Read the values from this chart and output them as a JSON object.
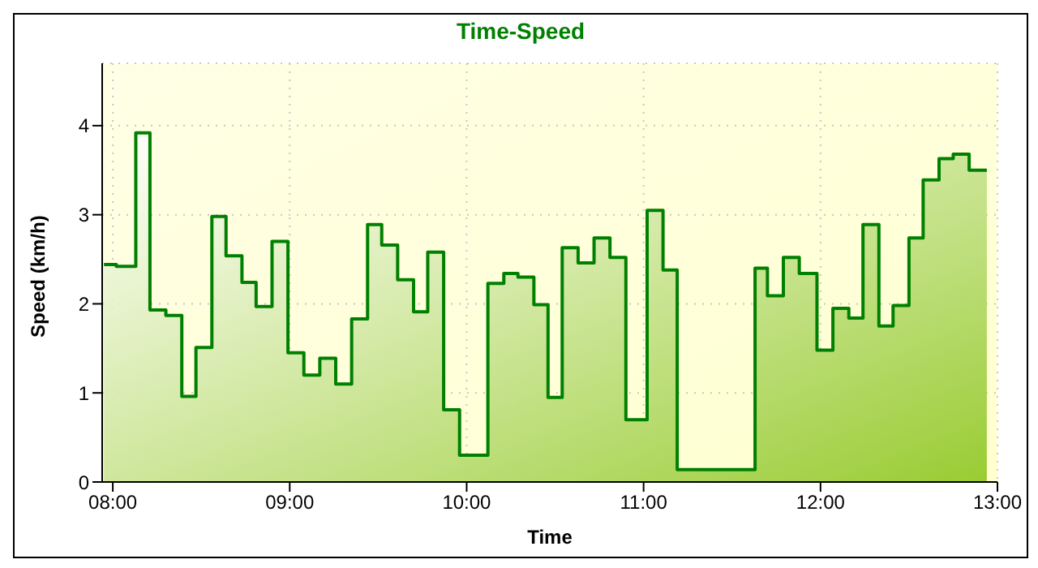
{
  "chart_data": {
    "type": "area",
    "title": "Time-Speed",
    "xlabel": "Time",
    "ylabel": "Speed (km/h)",
    "x": [
      7.95,
      8.02,
      8.02,
      8.13,
      8.13,
      8.21,
      8.21,
      8.3,
      8.3,
      8.39,
      8.39,
      8.47,
      8.47,
      8.56,
      8.56,
      8.64,
      8.64,
      8.73,
      8.73,
      8.81,
      8.81,
      8.9,
      8.9,
      8.99,
      8.99,
      9.08,
      9.08,
      9.17,
      9.17,
      9.26,
      9.26,
      9.35,
      9.35,
      9.44,
      9.44,
      9.52,
      9.52,
      9.61,
      9.61,
      9.7,
      9.7,
      9.78,
      9.78,
      9.87,
      9.87,
      9.96,
      9.96,
      10.12,
      10.12,
      10.21,
      10.21,
      10.29,
      10.29,
      10.38,
      10.38,
      10.46,
      10.46,
      10.54,
      10.54,
      10.63,
      10.63,
      10.72,
      10.72,
      10.81,
      10.81,
      10.9,
      10.9,
      11.02,
      11.02,
      11.11,
      11.11,
      11.19,
      11.19,
      11.63,
      11.63,
      11.7,
      11.7,
      11.79,
      11.79,
      11.88,
      11.88,
      11.98,
      11.98,
      12.07,
      12.07,
      12.16,
      12.16,
      12.24,
      12.24,
      12.33,
      12.33,
      12.41,
      12.41,
      12.5,
      12.5,
      12.58,
      12.58,
      12.67,
      12.67,
      12.75,
      12.75,
      12.84,
      12.84,
      12.94
    ],
    "series": [
      {
        "color": "#008000",
        "values": [
          2.44,
          2.44,
          2.42,
          2.42,
          3.92,
          3.92,
          1.93,
          1.93,
          1.87,
          1.87,
          0.96,
          0.96,
          1.51,
          1.51,
          2.98,
          2.98,
          2.54,
          2.54,
          2.24,
          2.24,
          1.97,
          1.97,
          2.7,
          2.7,
          1.45,
          1.45,
          1.2,
          1.2,
          1.39,
          1.39,
          1.1,
          1.1,
          1.83,
          1.83,
          2.89,
          2.89,
          2.66,
          2.66,
          2.27,
          2.27,
          1.91,
          1.91,
          2.58,
          2.58,
          0.81,
          0.81,
          0.3,
          0.3,
          2.23,
          2.23,
          2.34,
          2.34,
          2.3,
          2.3,
          1.99,
          1.99,
          0.95,
          0.95,
          2.63,
          2.63,
          2.46,
          2.46,
          2.74,
          2.74,
          2.52,
          2.52,
          0.7,
          0.7,
          3.05,
          3.05,
          2.38,
          2.38,
          0.14,
          0.14,
          2.4,
          2.4,
          2.09,
          2.09,
          2.52,
          2.52,
          2.34,
          2.34,
          1.48,
          1.48,
          1.95,
          1.95,
          1.84,
          1.84,
          2.89,
          2.89,
          1.75,
          1.75,
          1.98,
          1.98,
          2.74,
          2.74,
          3.39,
          3.39,
          3.63,
          3.63,
          3.68,
          3.68,
          3.5,
          3.5
        ]
      }
    ],
    "xlim": [
      7.94,
      13
    ],
    "xticks": [
      {
        "value": 8,
        "label": "08:00"
      },
      {
        "value": 9,
        "label": "09:00"
      },
      {
        "value": 10,
        "label": "10:00"
      },
      {
        "value": 11,
        "label": "11:00"
      },
      {
        "value": 12,
        "label": "12:00"
      },
      {
        "value": 13,
        "label": "13:00"
      }
    ],
    "ylim": [
      0,
      4.7
    ],
    "yticks": [
      0,
      1,
      2,
      3,
      4
    ],
    "grid": true,
    "legend": false
  }
}
